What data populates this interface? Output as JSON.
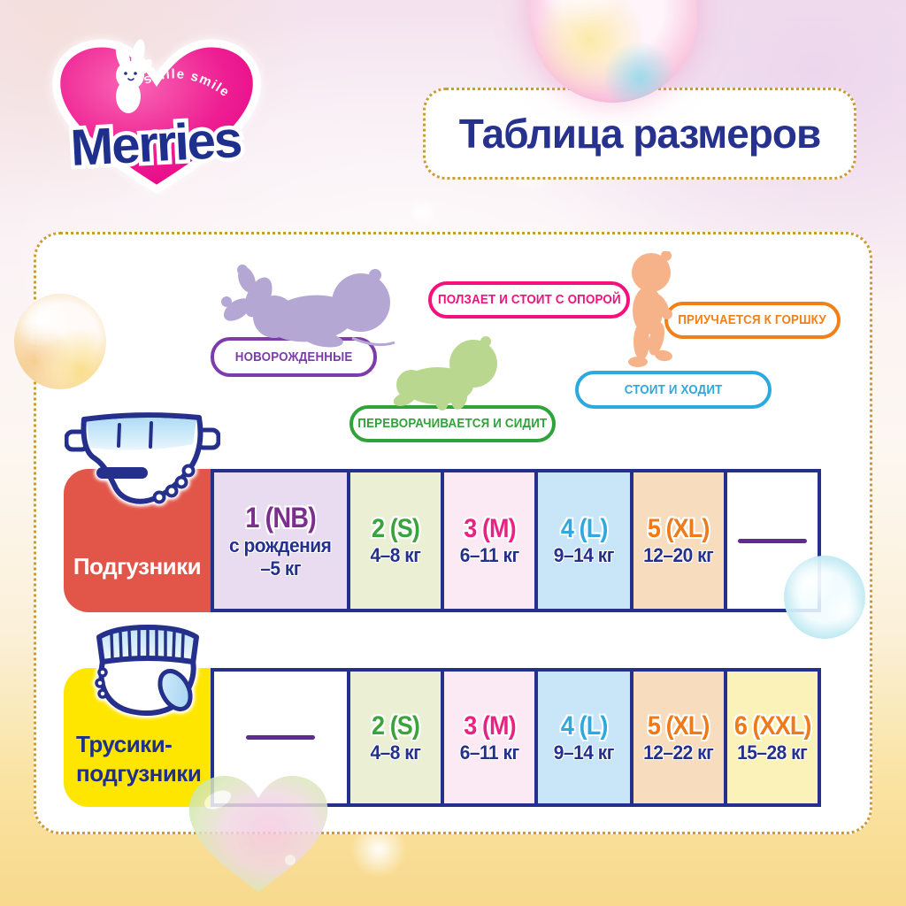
{
  "title": "Таблица размеров",
  "logo": {
    "brand": "Merries",
    "tagline": "smile smile"
  },
  "stages": [
    {
      "label": "НОВОРОЖДЕННЫЕ",
      "color": "#7C3CAB"
    },
    {
      "label": "ПЕРЕВОРАЧИВАЕТСЯ И СИДИТ",
      "color": "#2FA33A"
    },
    {
      "label": "ПОЛЗАЕТ И СТОИТ С ОПОРОЙ",
      "color": "#F4117E"
    },
    {
      "label": "ПРИУЧАЕТСЯ К ГОРШКУ",
      "color": "#F28019"
    },
    {
      "label": "СТОИТ И ХОДИТ",
      "color": "#2BA9E0"
    }
  ],
  "babies": [
    {
      "name": "newborn-baby",
      "color": "#B5A7D4"
    },
    {
      "name": "crawling-baby",
      "color": "#B9D78F"
    },
    {
      "name": "walking-baby",
      "color": "#F6B289"
    }
  ],
  "tables": [
    {
      "id": "diapers",
      "label": "Подгузники",
      "header_bg": "#E2564A",
      "label_color": "#FFFFFF",
      "icon": "tape-diaper-icon",
      "cells": [
        {
          "size": "1 (NB)",
          "size_color": "#7B2E8E",
          "weight_lines": [
            "с рождения",
            "–5 кг"
          ],
          "bg": "#EADCF0"
        },
        {
          "size": "2 (S)",
          "size_color": "#3BA33B",
          "weight_lines": [
            "4–8 кг"
          ],
          "bg": "#EBF0D5"
        },
        {
          "size": "3 (M)",
          "size_color": "#E82383",
          "weight_lines": [
            "6–11 кг"
          ],
          "bg": "#FBEAF3"
        },
        {
          "size": "4 (L)",
          "size_color": "#2FA8E0",
          "weight_lines": [
            "9–14 кг"
          ],
          "bg": "#C9E6F8"
        },
        {
          "size": "5 (XL)",
          "size_color": "#EE7A1A",
          "weight_lines": [
            "12–20 кг"
          ],
          "bg": "#F8DCBE"
        },
        {
          "empty": true,
          "bg": "#FFFFFF"
        }
      ]
    },
    {
      "id": "pants",
      "label": "Трусики-подгузники",
      "label_lines": [
        "Трусики-",
        "подгузники"
      ],
      "header_bg": "#FFE600",
      "label_color": "#1E2F8D",
      "icon": "pants-diaper-icon",
      "cells": [
        {
          "empty": true,
          "bg": "#FFFFFF"
        },
        {
          "size": "2 (S)",
          "size_color": "#3BA33B",
          "weight_lines": [
            "4–8 кг"
          ],
          "bg": "#EBF0D5"
        },
        {
          "size": "3 (M)",
          "size_color": "#E82383",
          "weight_lines": [
            "6–11 кг"
          ],
          "bg": "#FBEAF3"
        },
        {
          "size": "4 (L)",
          "size_color": "#2FA8E0",
          "weight_lines": [
            "9–14 кг"
          ],
          "bg": "#C9E6F8"
        },
        {
          "size": "5 (XL)",
          "size_color": "#EE7A1A",
          "weight_lines": [
            "12–22 кг"
          ],
          "bg": "#F8DCBE"
        },
        {
          "size": "6 (XXL)",
          "size_color": "#EE7A1A",
          "weight_lines": [
            "15–28 кг"
          ],
          "bg": "#FBF2BA"
        }
      ]
    }
  ],
  "palette": {
    "navy": "#24308C",
    "dash": "#5E2C91",
    "dotted_border": "#CE9A37"
  }
}
